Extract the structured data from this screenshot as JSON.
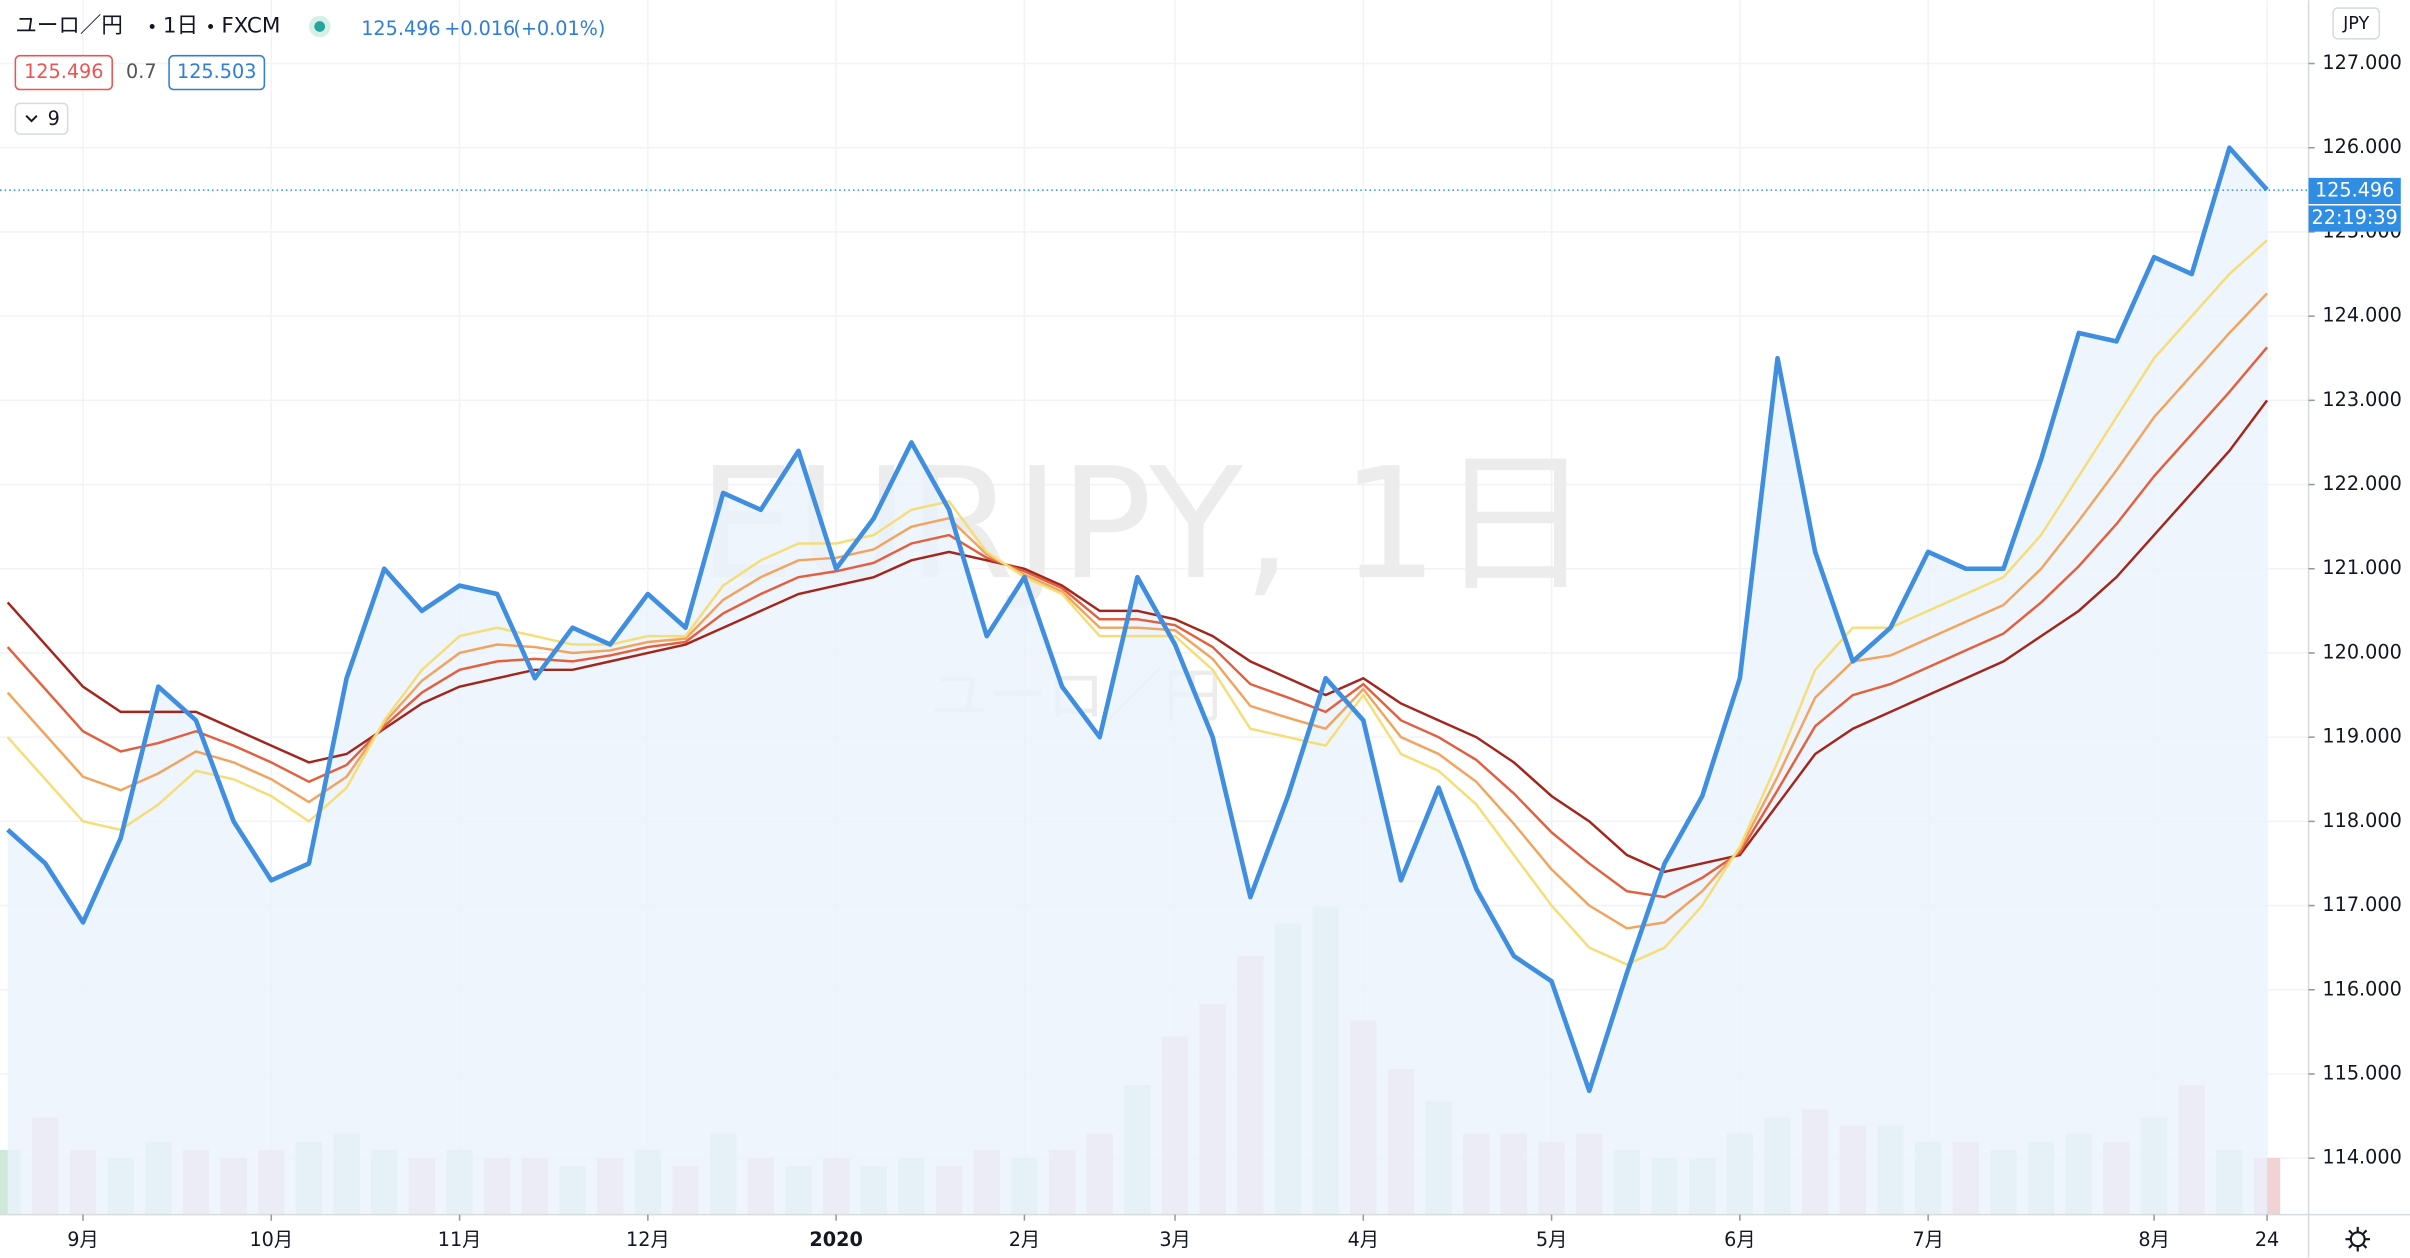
{
  "chart_data": {
    "type": "line",
    "symbol": "ユーロ／円",
    "interval": "1日",
    "exchange": "FXCM",
    "quote": 125.496,
    "change": "+0.016",
    "change_pct": "(+0.01%)",
    "bid": "125.496",
    "spread": "0.7",
    "ask": "125.503",
    "indicator_count": "9",
    "watermark": "EURJPY, 1日",
    "watermark_sub": "ユーロ／円",
    "currency": "JPY",
    "last_price": 125.496,
    "last_price_label": "125.496",
    "countdown": "22:19:39",
    "categories": [
      null,
      null,
      "9月",
      null,
      null,
      null,
      null,
      "10月",
      null,
      null,
      null,
      null,
      "11月",
      null,
      null,
      null,
      null,
      "12月",
      null,
      null,
      null,
      null,
      "2020",
      null,
      null,
      null,
      null,
      "2月",
      null,
      null,
      null,
      "3月",
      null,
      null,
      null,
      null,
      "4月",
      null,
      null,
      null,
      null,
      "5月",
      null,
      null,
      null,
      null,
      "6月",
      null,
      null,
      null,
      null,
      "7月",
      null,
      null,
      null,
      null,
      null,
      "8月",
      null,
      null,
      "24"
    ],
    "series": [
      {
        "color": "#3f8ee0",
        "values": [
          117.9,
          117.5,
          116.8,
          117.8,
          119.6,
          119.2,
          118.0,
          117.3,
          117.5,
          119.7,
          121.0,
          120.5,
          120.8,
          120.7,
          119.7,
          120.3,
          120.1,
          120.7,
          120.3,
          121.9,
          121.7,
          122.4,
          121.0,
          121.6,
          122.5,
          121.7,
          120.2,
          120.9,
          119.6,
          119.0,
          120.9,
          120.1,
          119.0,
          117.1,
          118.3,
          119.7,
          119.2,
          117.3,
          118.4,
          117.2,
          116.4,
          116.1,
          114.8,
          116.2,
          117.5,
          118.3,
          119.7,
          123.5,
          121.2,
          119.9,
          120.3,
          121.2,
          121.0,
          121.0,
          122.3,
          123.8,
          123.7,
          124.7,
          124.5,
          126.0,
          125.5
        ]
      },
      {
        "color": "#f5dd78",
        "values": [
          119.0,
          118.5,
          118.0,
          117.9,
          118.2,
          118.6,
          118.5,
          118.3,
          118.0,
          118.4,
          119.2,
          119.8,
          120.2,
          120.3,
          120.2,
          120.1,
          120.1,
          120.2,
          120.2,
          120.8,
          121.1,
          121.3,
          121.3,
          121.4,
          121.7,
          121.8,
          121.2,
          120.9,
          120.7,
          120.2,
          120.2,
          120.2,
          119.8,
          119.1,
          119.0,
          118.9,
          119.5,
          118.8,
          118.6,
          118.2,
          117.6,
          117.0,
          116.5,
          116.3,
          116.5,
          117.0,
          117.7,
          118.7,
          119.8,
          120.3,
          120.3,
          120.5,
          120.7,
          120.9,
          121.4,
          122.1,
          122.8,
          123.5,
          124.0,
          124.5,
          124.9
        ]
      },
      {
        "color": "#f2a45e",
        "values": [
          119.53,
          119.03,
          118.53,
          118.37,
          118.57,
          118.83,
          118.7,
          118.5,
          118.23,
          118.53,
          119.17,
          119.67,
          120.0,
          120.1,
          120.07,
          120.0,
          120.03,
          120.13,
          120.17,
          120.63,
          120.9,
          121.1,
          121.13,
          121.23,
          121.5,
          121.6,
          121.17,
          120.93,
          120.73,
          120.3,
          120.3,
          120.27,
          119.93,
          119.37,
          119.23,
          119.1,
          119.57,
          119.0,
          118.8,
          118.47,
          117.97,
          117.43,
          117.0,
          116.73,
          116.8,
          117.17,
          117.67,
          118.53,
          119.47,
          119.9,
          119.97,
          120.17,
          120.37,
          120.57,
          121.0,
          121.57,
          122.17,
          122.8,
          123.3,
          123.8,
          124.27
        ]
      },
      {
        "color": "#e2603f",
        "values": [
          120.07,
          119.57,
          119.07,
          118.83,
          118.93,
          119.07,
          118.9,
          118.7,
          118.47,
          118.67,
          119.13,
          119.53,
          119.8,
          119.9,
          119.93,
          119.9,
          119.97,
          120.07,
          120.13,
          120.47,
          120.7,
          120.9,
          120.97,
          121.07,
          121.3,
          121.4,
          121.13,
          120.97,
          120.77,
          120.4,
          120.4,
          120.33,
          120.07,
          119.63,
          119.47,
          119.3,
          119.63,
          119.2,
          119.0,
          118.73,
          118.33,
          117.87,
          117.5,
          117.17,
          117.1,
          117.33,
          117.63,
          118.37,
          119.13,
          119.5,
          119.63,
          119.83,
          120.03,
          120.23,
          120.6,
          121.03,
          121.53,
          122.1,
          122.6,
          123.1,
          123.63
        ]
      },
      {
        "color": "#a3261c",
        "values": [
          120.6,
          120.1,
          119.6,
          119.3,
          119.3,
          119.3,
          119.1,
          118.9,
          118.7,
          118.8,
          119.1,
          119.4,
          119.6,
          119.7,
          119.8,
          119.8,
          119.9,
          120.0,
          120.1,
          120.3,
          120.5,
          120.7,
          120.8,
          120.9,
          121.1,
          121.2,
          121.1,
          121.0,
          120.8,
          120.5,
          120.5,
          120.4,
          120.2,
          119.9,
          119.7,
          119.5,
          119.7,
          119.4,
          119.2,
          119.0,
          118.7,
          118.3,
          118.0,
          117.6,
          117.4,
          117.5,
          117.6,
          118.2,
          118.8,
          119.1,
          119.3,
          119.5,
          119.7,
          119.9,
          120.2,
          120.5,
          120.9,
          121.4,
          121.9,
          122.4,
          123.0
        ]
      }
    ],
    "volume": [
      40,
      60,
      40,
      35,
      45,
      40,
      35,
      40,
      45,
      50,
      40,
      35,
      40,
      35,
      35,
      30,
      35,
      40,
      30,
      50,
      35,
      30,
      35,
      30,
      35,
      30,
      40,
      35,
      40,
      50,
      80,
      110,
      130,
      160,
      180,
      190,
      120,
      90,
      70,
      50,
      50,
      45,
      50,
      40,
      35,
      35,
      50,
      60,
      65,
      55,
      55,
      45,
      45,
      40,
      45,
      50,
      45,
      60,
      80,
      40,
      35
    ],
    "volume_colors": {
      "up": "#cfe8d9",
      "down": "#f1d3d6"
    },
    "area_color": "#eaf3fc",
    "ylim": [
      113.33,
      127.75
    ],
    "yticks": [
      {
        "value": 114,
        "label": "114.000"
      },
      {
        "value": 115,
        "label": "115.000"
      },
      {
        "value": 116,
        "label": "116.000"
      },
      {
        "value": 117,
        "label": "117.000"
      },
      {
        "value": 118,
        "label": "118.000"
      },
      {
        "value": 119,
        "label": "119.000"
      },
      {
        "value": 120,
        "label": "120.000"
      },
      {
        "value": 121,
        "label": "121.000"
      },
      {
        "value": 122,
        "label": "122.000"
      },
      {
        "value": 123,
        "label": "123.000"
      },
      {
        "value": 124,
        "label": "124.000"
      },
      {
        "value": 125,
        "label": "125.000"
      },
      {
        "value": 126,
        "label": "126.000"
      },
      {
        "value": 127,
        "label": "127.000"
      }
    ],
    "grid": true
  }
}
